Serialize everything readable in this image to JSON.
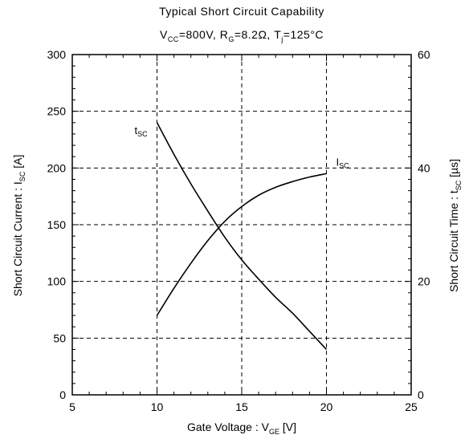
{
  "chart_data": {
    "type": "line",
    "title": "Typical Short Circuit Capability",
    "conditions": {
      "vcc_main": "V",
      "vcc_sub": "CC",
      "vcc_val": "=800V, ",
      "rg_main": "R",
      "rg_sub": "G",
      "rg_val": "=8.2Ω, ",
      "tj_main": "T",
      "tj_sub": "j",
      "tj_val": "=125°C"
    },
    "xlabel": {
      "main": "Gate Voltage  :  V",
      "sub": "GE",
      "unit": "  [V]"
    },
    "ylabel_left": {
      "main": "Short Circuit Current  :  I",
      "sub": "SC",
      "unit": "  [A]"
    },
    "ylabel_right": {
      "main": "Short Circuit Time  :  t",
      "sub": "SC",
      "unit": "  [µs]"
    },
    "xlim": [
      5,
      25
    ],
    "ylim_left": [
      0,
      300
    ],
    "ylim_right": [
      0,
      60
    ],
    "x_ticks": [
      "5",
      "10",
      "15",
      "20",
      "25"
    ],
    "y_left_ticks": [
      "0",
      "50",
      "100",
      "150",
      "200",
      "250",
      "300"
    ],
    "y_right_ticks": [
      "0",
      "20",
      "40",
      "60"
    ],
    "grid": true,
    "series": [
      {
        "name": "ISC",
        "label_main": "I",
        "label_sub": "SC",
        "axis": "left",
        "x": [
          10,
          11,
          12,
          13,
          14,
          15,
          16,
          17,
          18,
          19,
          20
        ],
        "y": [
          70,
          94,
          116,
          136,
          153,
          166,
          176,
          183,
          188,
          192,
          195
        ]
      },
      {
        "name": "tSC",
        "label_main": "t",
        "label_sub": "SC",
        "axis": "right",
        "x": [
          10,
          11,
          12,
          13,
          14,
          15,
          16,
          17,
          18,
          19,
          20
        ],
        "y": [
          48,
          42.4,
          37.2,
          32.4,
          27.8,
          23.8,
          20.4,
          17.2,
          14.4,
          11.2,
          8
        ]
      }
    ]
  }
}
